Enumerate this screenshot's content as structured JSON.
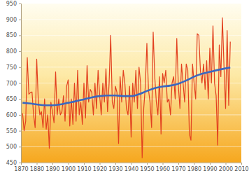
{
  "chart_data": {
    "type": "line",
    "series": [
      {
        "color": "#e2401f",
        "x": [
          1871,
          1872,
          1873,
          1874,
          1875,
          1876,
          1877,
          1878,
          1879,
          1880,
          1881,
          1882,
          1883,
          1884,
          1885,
          1886,
          1887,
          1888,
          1889,
          1890,
          1891,
          1892,
          1893,
          1894,
          1895,
          1896,
          1897,
          1898,
          1899,
          1900,
          1901,
          1902,
          1903,
          1904,
          1905,
          1906,
          1907,
          1908,
          1909,
          1910,
          1911,
          1912,
          1913,
          1914,
          1915,
          1916,
          1917,
          1918,
          1919,
          1920,
          1921,
          1922,
          1923,
          1924,
          1925,
          1926,
          1927,
          1928,
          1929,
          1930,
          1931,
          1932,
          1933,
          1934,
          1935,
          1936,
          1937,
          1938,
          1939,
          1940,
          1941,
          1942,
          1943,
          1944,
          1945,
          1946,
          1947,
          1948,
          1949,
          1950,
          1951,
          1952,
          1953,
          1954,
          1955,
          1956,
          1957,
          1958,
          1959,
          1960,
          1961,
          1962,
          1963,
          1964,
          1965,
          1966,
          1967,
          1968,
          1969,
          1970,
          1971,
          1972,
          1973,
          1974,
          1975,
          1976,
          1977,
          1978,
          1979,
          1980,
          1981,
          1982,
          1983,
          1984,
          1985,
          1986,
          1987,
          1988,
          1989,
          1990,
          1991,
          1992,
          1993,
          1994,
          1995,
          1996,
          1997,
          1998,
          1999,
          2000,
          2001,
          2002,
          2003
        ],
        "values": [
          605,
          550,
          580,
          780,
          665,
          670,
          672,
          600,
          560,
          775,
          645,
          600,
          610,
          560,
          650,
          555,
          600,
          495,
          640,
          610,
          575,
          735,
          600,
          650,
          600,
          610,
          660,
          580,
          690,
          710,
          565,
          650,
          570,
          700,
          580,
          740,
          600,
          640,
          570,
          700,
          590,
          755,
          640,
          680,
          670,
          600,
          700,
          620,
          740,
          660,
          600,
          700,
          640,
          745,
          610,
          700,
          850,
          640,
          620,
          690,
          670,
          510,
          720,
          640,
          740,
          700,
          620,
          600,
          690,
          530,
          700,
          640,
          740,
          620,
          750,
          700,
          465,
          620,
          690,
          825,
          680,
          640,
          560,
          860,
          720,
          640,
          600,
          720,
          540,
          730,
          700,
          740,
          640,
          650,
          600,
          700,
          720,
          650,
          840,
          690,
          620,
          760,
          700,
          640,
          760,
          740,
          540,
          520,
          760,
          700,
          650,
          855,
          850,
          740,
          700,
          760,
          680,
          770,
          650,
          810,
          700,
          880,
          700,
          660,
          505,
          820,
          720,
          905,
          750,
          620,
          865,
          630,
          830
        ]
      },
      {
        "color": "#3a68c0",
        "x": [
          1871,
          1875,
          1880,
          1885,
          1890,
          1895,
          1900,
          1905,
          1910,
          1915,
          1920,
          1925,
          1930,
          1935,
          1940,
          1945,
          1950,
          1955,
          1960,
          1965,
          1970,
          1975,
          1980,
          1985,
          1990,
          1995,
          2000,
          2003
        ],
        "values": [
          638,
          636,
          633,
          630,
          630,
          633,
          638,
          643,
          649,
          655,
          659,
          661,
          661,
          659,
          659,
          665,
          675,
          684,
          689,
          692,
          698,
          708,
          720,
          729,
          735,
          741,
          746,
          749
        ]
      }
    ],
    "xlim": [
      1870,
      2010
    ],
    "xticks": [
      1870,
      1880,
      1890,
      1900,
      1910,
      1920,
      1930,
      1940,
      1950,
      1960,
      1970,
      1980,
      1990,
      2000,
      2010
    ],
    "ylim": [
      450,
      950
    ],
    "yticks": [
      450,
      500,
      550,
      600,
      650,
      700,
      750,
      800,
      850,
      900,
      950
    ],
    "grid": true
  }
}
